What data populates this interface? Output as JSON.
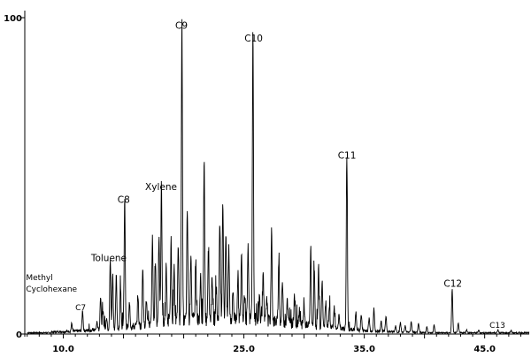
{
  "chart_data": {
    "type": "line",
    "title": "",
    "xlabel": "",
    "ylabel": "",
    "xlim": [
      6.8,
      48.7
    ],
    "ylim": [
      0,
      100
    ],
    "y_ticks": [
      {
        "value": 0,
        "label": "0"
      },
      {
        "value": 100,
        "label": "100"
      }
    ],
    "x_ticks": [
      {
        "value": 10.0,
        "label": "10.0"
      },
      {
        "value": 25.0,
        "label": "25.0"
      },
      {
        "value": 35.0,
        "label": "35.0"
      },
      {
        "value": 45.0,
        "label": "45.0"
      }
    ],
    "grid": false,
    "legend": "none",
    "line_color": "#000000",
    "peaks": [
      {
        "x": 10.7,
        "y": 2.5,
        "label": ""
      },
      {
        "x": 11.6,
        "y": 6.5,
        "label": "C7"
      },
      {
        "x": 12.8,
        "y": 2.5,
        "label": ""
      },
      {
        "x": 13.1,
        "y": 10.8,
        "label": ""
      },
      {
        "x": 13.6,
        "y": 4.0,
        "label": ""
      },
      {
        "x": 13.3,
        "y": 6.0,
        "label": ""
      },
      {
        "x": 13.9,
        "y": 22.0,
        "label": "Toluene"
      },
      {
        "x": 14.1,
        "y": 17.5,
        "label": ""
      },
      {
        "x": 14.4,
        "y": 16.5,
        "label": ""
      },
      {
        "x": 14.75,
        "y": 12.0,
        "label": ""
      },
      {
        "x": 15.1,
        "y": 40.5,
        "label": "C8"
      },
      {
        "x": 15.5,
        "y": 8.0,
        "label": ""
      },
      {
        "x": 16.2,
        "y": 10.0,
        "label": ""
      },
      {
        "x": 16.6,
        "y": 19.0,
        "label": ""
      },
      {
        "x": 16.9,
        "y": 8.0,
        "label": ""
      },
      {
        "x": 17.4,
        "y": 27.0,
        "label": ""
      },
      {
        "x": 17.65,
        "y": 20.0,
        "label": ""
      },
      {
        "x": 17.95,
        "y": 28.0,
        "label": ""
      },
      {
        "x": 18.15,
        "y": 44.0,
        "label": "Xylene"
      },
      {
        "x": 18.55,
        "y": 18.0,
        "label": ""
      },
      {
        "x": 18.95,
        "y": 24.0,
        "label": ""
      },
      {
        "x": 19.2,
        "y": 17.0,
        "label": ""
      },
      {
        "x": 19.55,
        "y": 24.0,
        "label": ""
      },
      {
        "x": 19.85,
        "y": 95.0,
        "label": "C9"
      },
      {
        "x": 20.3,
        "y": 35.0,
        "label": ""
      },
      {
        "x": 20.6,
        "y": 22.0,
        "label": ""
      },
      {
        "x": 21.0,
        "y": 19.0,
        "label": ""
      },
      {
        "x": 21.4,
        "y": 13.0,
        "label": ""
      },
      {
        "x": 21.7,
        "y": 50.0,
        "label": ""
      },
      {
        "x": 22.05,
        "y": 23.0,
        "label": ""
      },
      {
        "x": 22.35,
        "y": 15.0,
        "label": ""
      },
      {
        "x": 22.7,
        "y": 10.0,
        "label": ""
      },
      {
        "x": 23.0,
        "y": 30.0,
        "label": ""
      },
      {
        "x": 23.25,
        "y": 38.0,
        "label": ""
      },
      {
        "x": 23.5,
        "y": 28.0,
        "label": ""
      },
      {
        "x": 23.75,
        "y": 22.0,
        "label": ""
      },
      {
        "x": 24.1,
        "y": 9.0,
        "label": ""
      },
      {
        "x": 24.5,
        "y": 14.0,
        "label": ""
      },
      {
        "x": 24.8,
        "y": 20.0,
        "label": ""
      },
      {
        "x": 25.05,
        "y": 9.0,
        "label": ""
      },
      {
        "x": 25.35,
        "y": 22.0,
        "label": ""
      },
      {
        "x": 25.75,
        "y": 91.0,
        "label": "C10"
      },
      {
        "x": 26.3,
        "y": 8.0,
        "label": ""
      },
      {
        "x": 26.6,
        "y": 14.0,
        "label": ""
      },
      {
        "x": 26.9,
        "y": 8.0,
        "label": ""
      },
      {
        "x": 27.3,
        "y": 28.0,
        "label": ""
      },
      {
        "x": 27.9,
        "y": 19.0,
        "label": ""
      },
      {
        "x": 28.2,
        "y": 13.0,
        "label": ""
      },
      {
        "x": 28.6,
        "y": 8.0,
        "label": ""
      },
      {
        "x": 29.2,
        "y": 9.0,
        "label": ""
      },
      {
        "x": 29.6,
        "y": 5.0,
        "label": ""
      },
      {
        "x": 30.0,
        "y": 6.0,
        "label": ""
      },
      {
        "x": 30.55,
        "y": 25.0,
        "label": ""
      },
      {
        "x": 30.85,
        "y": 17.0,
        "label": ""
      },
      {
        "x": 31.2,
        "y": 19.0,
        "label": ""
      },
      {
        "x": 31.5,
        "y": 15.0,
        "label": ""
      },
      {
        "x": 31.8,
        "y": 8.0,
        "label": ""
      },
      {
        "x": 32.1,
        "y": 6.0,
        "label": ""
      },
      {
        "x": 32.5,
        "y": 7.0,
        "label": ""
      },
      {
        "x": 32.9,
        "y": 4.0,
        "label": ""
      },
      {
        "x": 33.55,
        "y": 54.0,
        "label": "C11"
      },
      {
        "x": 34.3,
        "y": 5.5,
        "label": ""
      },
      {
        "x": 34.75,
        "y": 5.0,
        "label": ""
      },
      {
        "x": 35.4,
        "y": 4.0,
        "label": ""
      },
      {
        "x": 35.8,
        "y": 7.0,
        "label": ""
      },
      {
        "x": 36.4,
        "y": 3.5,
        "label": ""
      },
      {
        "x": 36.8,
        "y": 5.0,
        "label": ""
      },
      {
        "x": 37.6,
        "y": 2.0,
        "label": ""
      },
      {
        "x": 38.0,
        "y": 3.0,
        "label": ""
      },
      {
        "x": 38.4,
        "y": 2.0,
        "label": ""
      },
      {
        "x": 38.9,
        "y": 3.5,
        "label": ""
      },
      {
        "x": 39.5,
        "y": 3.0,
        "label": ""
      },
      {
        "x": 40.2,
        "y": 2.0,
        "label": ""
      },
      {
        "x": 40.8,
        "y": 2.5,
        "label": ""
      },
      {
        "x": 42.3,
        "y": 14.0,
        "label": "C12"
      },
      {
        "x": 42.8,
        "y": 3.0,
        "label": ""
      },
      {
        "x": 43.5,
        "y": 1.0,
        "label": ""
      },
      {
        "x": 44.5,
        "y": 0.8,
        "label": ""
      },
      {
        "x": 46.1,
        "y": 1.0,
        "label": "C13"
      },
      {
        "x": 47.2,
        "y": 0.6,
        "label": ""
      }
    ],
    "annotations": [
      {
        "text": "Methyl",
        "x": 6.9,
        "y": 17.0
      },
      {
        "text": "Cyclohexane",
        "x": 6.9,
        "y": 13.4
      },
      {
        "text": "C7",
        "x": 11.0,
        "y": 7.5
      },
      {
        "text": "Toluene",
        "x": 12.3,
        "y": 23.0
      },
      {
        "text": "C8",
        "x": 14.5,
        "y": 41.5
      },
      {
        "text": "Xylene",
        "x": 16.8,
        "y": 45.5
      },
      {
        "text": "C9",
        "x": 19.3,
        "y": 96.5
      },
      {
        "text": "C10",
        "x": 25.05,
        "y": 92.5
      },
      {
        "text": "C11",
        "x": 32.8,
        "y": 55.5
      },
      {
        "text": "C12",
        "x": 41.6,
        "y": 15.0
      },
      {
        "text": "C13",
        "x": 45.4,
        "y": 2.0
      }
    ]
  }
}
